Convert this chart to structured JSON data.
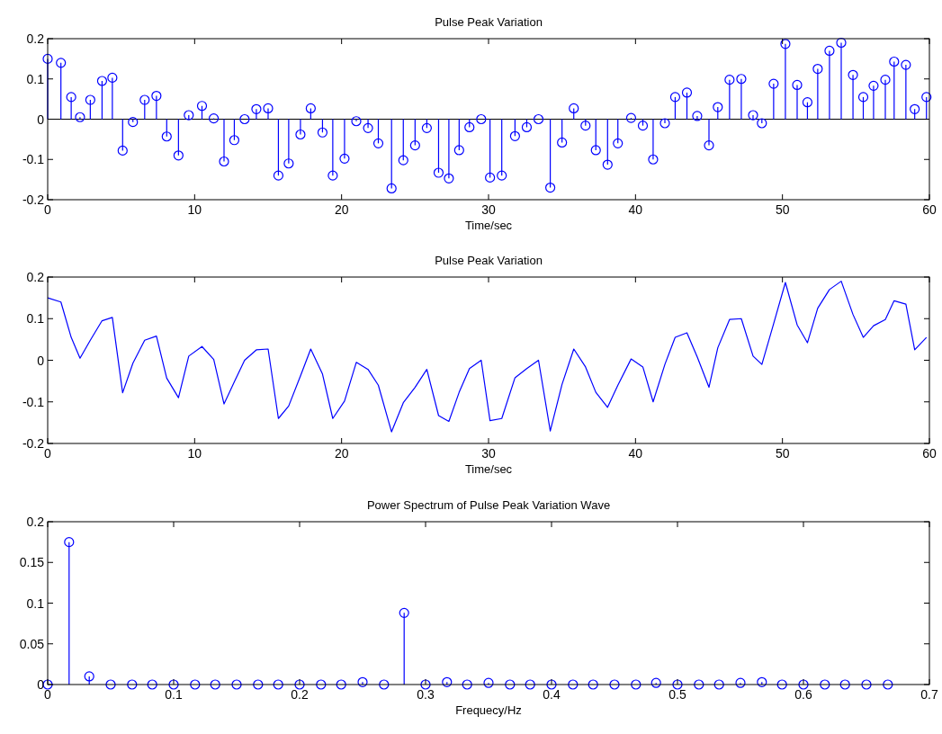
{
  "chart_data": [
    {
      "type": "lollipop",
      "title": "Pulse Peak Variation",
      "xlabel": "Time/sec",
      "marker": "circle",
      "color": "#0000ff",
      "xlim": [
        0,
        60
      ],
      "xticks": [
        0,
        10,
        20,
        30,
        40,
        50,
        60
      ],
      "ylim": [
        -0.2,
        0.2
      ],
      "yticks": [
        -0.2,
        -0.1,
        0,
        0.1,
        0.2
      ],
      "grid": false,
      "ref_lines": [
        {
          "axis": "y",
          "value": 0,
          "color": "#000000"
        }
      ],
      "x": [
        0,
        0.9,
        1.6,
        2.2,
        2.9,
        3.7,
        4.4,
        5.1,
        5.8,
        6.6,
        7.4,
        8.1,
        8.9,
        9.6,
        10.5,
        11.3,
        12.0,
        12.7,
        13.4,
        14.2,
        15.0,
        15.7,
        16.4,
        17.2,
        17.9,
        18.7,
        19.4,
        20.2,
        21.0,
        21.8,
        22.5,
        23.4,
        24.2,
        25.0,
        25.8,
        26.6,
        27.3,
        28.0,
        28.7,
        29.5,
        30.1,
        30.9,
        31.8,
        32.6,
        33.4,
        34.2,
        35.0,
        35.8,
        36.6,
        37.3,
        38.1,
        38.8,
        39.7,
        40.5,
        41.2,
        42.0,
        42.7,
        43.5,
        44.2,
        45.0,
        45.6,
        46.4,
        47.2,
        48.0,
        48.6,
        49.4,
        50.2,
        51.0,
        51.7,
        52.4,
        53.2,
        54.0,
        54.8,
        55.5,
        56.2,
        57.0,
        57.6,
        58.4,
        59.0,
        59.8
      ],
      "values": [
        0.15,
        0.14,
        0.055,
        0.005,
        0.048,
        0.095,
        0.103,
        -0.078,
        -0.007,
        0.048,
        0.058,
        -0.043,
        -0.09,
        0.01,
        0.033,
        0.002,
        -0.105,
        -0.052,
        0.0,
        0.025,
        0.027,
        -0.14,
        -0.11,
        -0.038,
        0.027,
        -0.033,
        -0.14,
        -0.098,
        -0.005,
        -0.022,
        -0.06,
        -0.172,
        -0.102,
        -0.065,
        -0.022,
        -0.133,
        -0.147,
        -0.077,
        -0.02,
        0.0,
        -0.145,
        -0.14,
        -0.042,
        -0.02,
        0.0,
        -0.17,
        -0.058,
        0.027,
        -0.016,
        -0.077,
        -0.113,
        -0.06,
        0.003,
        -0.016,
        -0.1,
        -0.01,
        0.055,
        0.066,
        0.008,
        -0.065,
        0.03,
        0.098,
        0.1,
        0.01,
        -0.01,
        0.088,
        0.187,
        0.085,
        0.042,
        0.125,
        0.17,
        0.19,
        0.11,
        0.055,
        0.083,
        0.098,
        0.143,
        0.135,
        0.025,
        0.055
      ]
    },
    {
      "type": "line",
      "title": "Pulse Peak Variation",
      "xlabel": "Time/sec",
      "marker": "none",
      "color": "#0000ff",
      "xlim": [
        0,
        60
      ],
      "xticks": [
        0,
        10,
        20,
        30,
        40,
        50,
        60
      ],
      "ylim": [
        -0.2,
        0.2
      ],
      "yticks": [
        -0.2,
        -0.1,
        0,
        0.1,
        0.2
      ],
      "grid": false,
      "x": [
        0,
        0.9,
        1.6,
        2.2,
        2.9,
        3.7,
        4.4,
        5.1,
        5.8,
        6.6,
        7.4,
        8.1,
        8.9,
        9.6,
        10.5,
        11.3,
        12.0,
        12.7,
        13.4,
        14.2,
        15.0,
        15.7,
        16.4,
        17.2,
        17.9,
        18.7,
        19.4,
        20.2,
        21.0,
        21.8,
        22.5,
        23.4,
        24.2,
        25.0,
        25.8,
        26.6,
        27.3,
        28.0,
        28.7,
        29.5,
        30.1,
        30.9,
        31.8,
        32.6,
        33.4,
        34.2,
        35.0,
        35.8,
        36.6,
        37.3,
        38.1,
        38.8,
        39.7,
        40.5,
        41.2,
        42.0,
        42.7,
        43.5,
        44.2,
        45.0,
        45.6,
        46.4,
        47.2,
        48.0,
        48.6,
        49.4,
        50.2,
        51.0,
        51.7,
        52.4,
        53.2,
        54.0,
        54.8,
        55.5,
        56.2,
        57.0,
        57.6,
        58.4,
        59.0,
        59.8
      ],
      "values": [
        0.15,
        0.14,
        0.055,
        0.005,
        0.048,
        0.095,
        0.103,
        -0.078,
        -0.007,
        0.048,
        0.058,
        -0.043,
        -0.09,
        0.01,
        0.033,
        0.002,
        -0.105,
        -0.052,
        0.0,
        0.025,
        0.027,
        -0.14,
        -0.11,
        -0.038,
        0.027,
        -0.033,
        -0.14,
        -0.098,
        -0.005,
        -0.022,
        -0.06,
        -0.172,
        -0.102,
        -0.065,
        -0.022,
        -0.133,
        -0.147,
        -0.077,
        -0.02,
        0.0,
        -0.145,
        -0.14,
        -0.042,
        -0.02,
        0.0,
        -0.17,
        -0.058,
        0.027,
        -0.016,
        -0.077,
        -0.113,
        -0.06,
        0.003,
        -0.016,
        -0.1,
        -0.01,
        0.055,
        0.066,
        0.008,
        -0.065,
        0.03,
        0.098,
        0.1,
        0.01,
        -0.01,
        0.088,
        0.187,
        0.085,
        0.042,
        0.125,
        0.17,
        0.19,
        0.11,
        0.055,
        0.083,
        0.098,
        0.143,
        0.135,
        0.025,
        0.055
      ]
    },
    {
      "type": "lollipop",
      "title": "Power Spectrum of Pulse Peak Variation Wave",
      "xlabel": "Frequecy/Hz",
      "marker": "circle",
      "color": "#0000ff",
      "xlim": [
        0,
        0.7
      ],
      "xticks": [
        0,
        0.1,
        0.2,
        0.3,
        0.4,
        0.5,
        0.6,
        0.7
      ],
      "ylim": [
        0,
        0.2
      ],
      "yticks": [
        0,
        0.05,
        0.1,
        0.15,
        0.2
      ],
      "grid": false,
      "x": [
        0,
        0.017,
        0.033,
        0.05,
        0.067,
        0.083,
        0.1,
        0.117,
        0.133,
        0.15,
        0.167,
        0.183,
        0.2,
        0.217,
        0.233,
        0.25,
        0.267,
        0.283,
        0.3,
        0.317,
        0.333,
        0.35,
        0.367,
        0.383,
        0.4,
        0.417,
        0.433,
        0.45,
        0.467,
        0.483,
        0.5,
        0.517,
        0.533,
        0.55,
        0.567,
        0.583,
        0.6,
        0.617,
        0.633,
        0.65,
        0.667
      ],
      "values": [
        0,
        0.175,
        0.01,
        0,
        0,
        0,
        0,
        0,
        0,
        0,
        0,
        0,
        0,
        0,
        0,
        0.003,
        0,
        0.088,
        0,
        0.003,
        0,
        0.002,
        0,
        0,
        0,
        0,
        0,
        0,
        0,
        0.002,
        0,
        0,
        0,
        0.002,
        0.003,
        0,
        0,
        0,
        0,
        0,
        0
      ]
    }
  ]
}
